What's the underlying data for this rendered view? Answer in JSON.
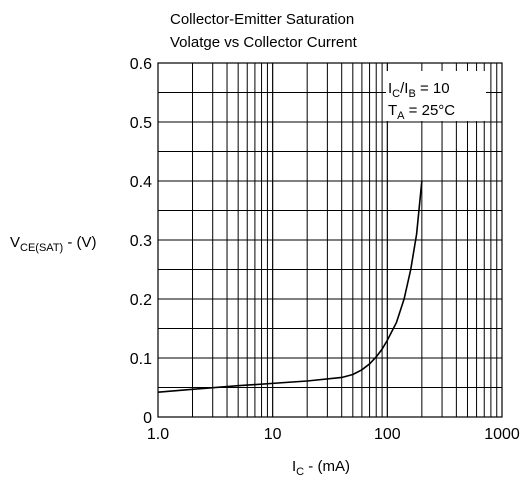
{
  "chart_data": {
    "type": "line",
    "title_line1": "Collector-Emitter Saturation",
    "title_line2": "Volatge vs Collector Current",
    "ylabel": {
      "main": "V",
      "sub": "CE(SAT)",
      "tail": " - (V)"
    },
    "xlabel": {
      "main": "I",
      "sub": "C",
      "tail": " - (mA)"
    },
    "x_scale": "log",
    "xlim": [
      1,
      1000
    ],
    "ylim": [
      0,
      0.6
    ],
    "x_ticks": [
      {
        "value": 1,
        "label": "1.0"
      },
      {
        "value": 10,
        "label": "10"
      },
      {
        "value": 100,
        "label": "100"
      },
      {
        "value": 1000,
        "label": "1000"
      }
    ],
    "y_ticks": [
      {
        "value": 0,
        "label": "0"
      },
      {
        "value": 0.1,
        "label": "0.1"
      },
      {
        "value": 0.2,
        "label": "0.2"
      },
      {
        "value": 0.3,
        "label": "0.3"
      },
      {
        "value": 0.4,
        "label": "0.4"
      },
      {
        "value": 0.5,
        "label": "0.5"
      },
      {
        "value": 0.6,
        "label": "0.6"
      }
    ],
    "y_minor_gridlines": [
      0.05,
      0.15,
      0.25,
      0.35,
      0.45,
      0.55
    ],
    "grid": true,
    "annotations": [
      {
        "type": "ratio",
        "a_main": "I",
        "a_sub": "C",
        "b_main": "/I",
        "b_sub": "B",
        "tail": " = 10"
      },
      {
        "type": "temp",
        "main": "T",
        "sub": "A",
        "tail": " = 25°C"
      }
    ],
    "series": [
      {
        "x": [
          1,
          2,
          5,
          10,
          20,
          40,
          50,
          60,
          70,
          80,
          90,
          100,
          120,
          140,
          160,
          180,
          200
        ],
        "y": [
          0.042,
          0.047,
          0.053,
          0.057,
          0.061,
          0.067,
          0.072,
          0.08,
          0.09,
          0.102,
          0.115,
          0.13,
          0.16,
          0.2,
          0.25,
          0.31,
          0.4
        ]
      }
    ]
  }
}
